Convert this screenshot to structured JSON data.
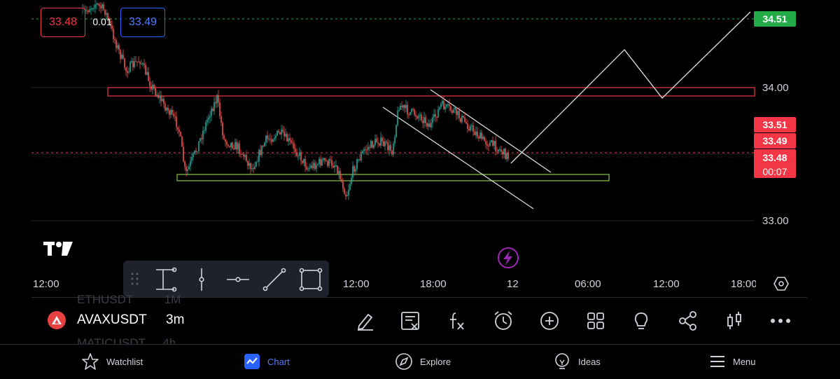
{
  "quote": {
    "bid": "33.48",
    "spread": "0.01",
    "ask": "33.49"
  },
  "price_axis": {
    "labels": [
      "34.00",
      "33.00"
    ],
    "target_badge": "34.51",
    "badges": [
      "33.51",
      "33.49",
      "33.48",
      "00:07"
    ]
  },
  "time_axis": {
    "labels": [
      "12:00",
      "12:00",
      "18:00",
      "12",
      "06:00",
      "12:00",
      "18:00"
    ]
  },
  "drawing_tools": [
    {
      "name": "vertical-measure-tool-icon"
    },
    {
      "name": "vertical-line-tool-icon"
    },
    {
      "name": "horizontal-line-tool-icon"
    },
    {
      "name": "trend-line-tool-icon"
    },
    {
      "name": "rectangle-tool-icon"
    }
  ],
  "symbol_bar": {
    "symbol": "AVAXUSDT",
    "interval": "3m",
    "prev_symbol": "ETHUSDT",
    "prev_interval": "1M",
    "next_symbol": "MATICUSDT",
    "next_interval": "4h"
  },
  "toolbar": {
    "icons": [
      "pencil-icon",
      "clear-drawings-icon",
      "indicators-icon",
      "alert-icon",
      "add-icon",
      "layout-grid-icon",
      "ideas-bulb-icon",
      "share-icon",
      "chart-type-icon",
      "more-icon"
    ]
  },
  "bottom_nav": {
    "items": [
      {
        "label": "Watchlist",
        "icon": "star-icon"
      },
      {
        "label": "Chart",
        "icon": "chart-icon"
      },
      {
        "label": "Explore",
        "icon": "compass-icon"
      },
      {
        "label": "Ideas",
        "icon": "bulb-icon"
      },
      {
        "label": "Menu",
        "icon": "hamburger-icon"
      }
    ],
    "active": "Chart"
  },
  "colors": {
    "up": "#26a69a",
    "down": "#ef5350",
    "accent": "#2962ff",
    "green_badge": "#22ab47",
    "red_badge": "#f23645",
    "purple": "#9c27b0"
  }
}
